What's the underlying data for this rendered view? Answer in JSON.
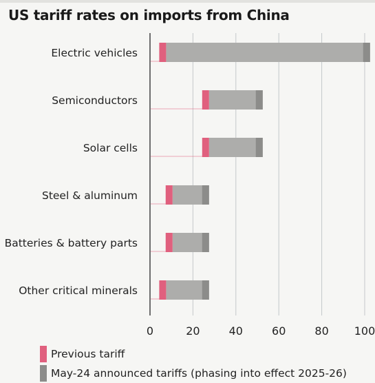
{
  "chart_data": {
    "type": "bar",
    "title": "US tariff rates on imports from China",
    "categories": [
      "Electric vehicles",
      "Semiconductors",
      "Solar cells",
      "Steel & aluminum",
      "Batteries & battery parts",
      "Other critical minerals"
    ],
    "series": [
      {
        "name": "Previous tariff",
        "values": [
          7.5,
          27.5,
          27.5,
          10.5,
          10.5,
          7.5
        ],
        "color": "#e0607e"
      },
      {
        "name": "May-24 announced tariffs (phasing into effect 2025-26)",
        "values": [
          102.5,
          52.5,
          52.5,
          27.5,
          27.5,
          27.5
        ],
        "color": "#8c8c8a"
      }
    ],
    "xticks": [
      "0",
      "20",
      "40",
      "60",
      "80",
      "100"
    ],
    "xlim": [
      0,
      102.5
    ],
    "grid": true,
    "legend": "bottom-left"
  }
}
